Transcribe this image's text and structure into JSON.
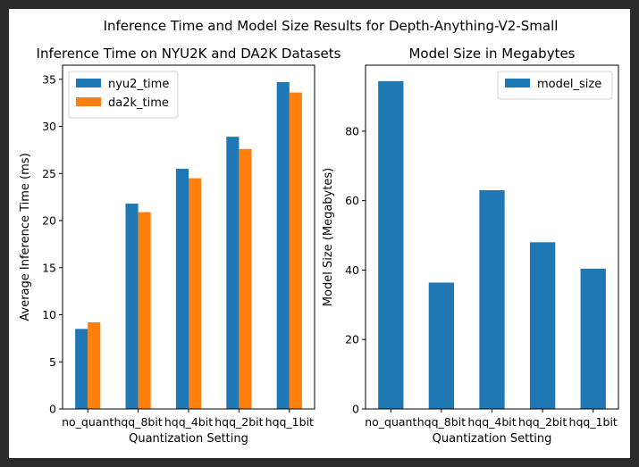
{
  "figure": {
    "suptitle": "Inference Time and Model Size Results for Depth-Anything-V2-Small"
  },
  "chart_data": [
    {
      "type": "bar",
      "title": "Inference Time on NYU2K and DA2K Datasets",
      "xlabel": "Quantization Setting",
      "ylabel": "Average Inference Time (ms)",
      "categories": [
        "no_quant",
        "hqq_8bit",
        "hqq_4bit",
        "hqq_2bit",
        "hqq_1bit"
      ],
      "series": [
        {
          "name": "nyu2_time",
          "color": "#1f77b4",
          "values": [
            8.5,
            21.8,
            25.5,
            28.9,
            34.7
          ]
        },
        {
          "name": "da2k_time",
          "color": "#ff7f0e",
          "values": [
            9.2,
            20.9,
            24.5,
            27.6,
            33.6
          ]
        }
      ],
      "ylim": [
        0,
        36.5
      ],
      "yticks": [
        0,
        5,
        10,
        15,
        20,
        25,
        30,
        35
      ],
      "legend": "top-left",
      "grid": false
    },
    {
      "type": "bar",
      "title": "Model Size in Megabytes",
      "xlabel": "Quantization Setting",
      "ylabel": "Model Size (Megabytes)",
      "categories": [
        "no_quant",
        "hqq_8bit",
        "hqq_4bit",
        "hqq_2bit",
        "hqq_1bit"
      ],
      "series": [
        {
          "name": "model_size",
          "color": "#1f77b4",
          "values": [
            94.4,
            36.4,
            63.0,
            48.0,
            40.4
          ]
        }
      ],
      "ylim": [
        0,
        99
      ],
      "yticks": [
        0,
        20,
        40,
        60,
        80
      ],
      "legend": "top-right",
      "grid": false
    }
  ]
}
